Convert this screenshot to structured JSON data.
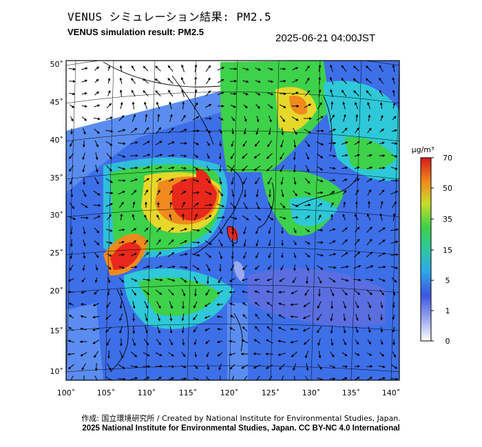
{
  "header": {
    "title_ja": "VENUS シミュレーション結果: PM2.5",
    "title_en": "VENUS simulation result: PM2.5",
    "datetime": "2025-06-21 04:00JST"
  },
  "map": {
    "lat_labels": [
      "50˚",
      "45˚",
      "40˚",
      "35˚",
      "30˚",
      "25˚",
      "20˚",
      "15˚",
      "10˚"
    ],
    "lon_labels": [
      "100˚",
      "105˚",
      "110˚",
      "115˚",
      "120˚",
      "125˚",
      "130˚",
      "135˚",
      "140˚"
    ],
    "colors": {
      "ocean_blue": "#3d6fe8",
      "cyan": "#2ec8d8",
      "green": "#3ed14a",
      "yellow": "#e6d82a",
      "orange": "#f08a1c",
      "red": "#e8281c"
    }
  },
  "colorbar": {
    "unit": "μg/m³",
    "tick_labels": [
      "70",
      "50",
      "35",
      "15",
      "5",
      "1",
      "0"
    ]
  },
  "credits": {
    "line1": "作成: 国立環境研究所 / Created by National Institute for Environmental Studies, Japan.",
    "line2": "2025 National Institute for Environmental Studies, Japan. CC BY-NC 4.0 International"
  }
}
